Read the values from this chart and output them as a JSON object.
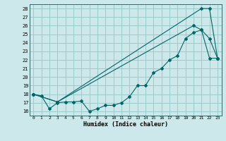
{
  "xlabel": "Humidex (Indice chaleur)",
  "bg_color": "#cce8ea",
  "grid_color": "#99cccc",
  "line_color": "#006666",
  "xlim": [
    -0.5,
    23.5
  ],
  "ylim": [
    15.5,
    28.5
  ],
  "xticks": [
    0,
    1,
    2,
    3,
    4,
    5,
    6,
    7,
    8,
    9,
    10,
    11,
    12,
    13,
    14,
    15,
    16,
    17,
    18,
    19,
    20,
    21,
    22,
    23
  ],
  "yticks": [
    16,
    17,
    18,
    19,
    20,
    21,
    22,
    23,
    24,
    25,
    26,
    27,
    28
  ],
  "line1_x": [
    0,
    1,
    2,
    3,
    4,
    5,
    6,
    7,
    8,
    9,
    10,
    11,
    12,
    13,
    14,
    15,
    16,
    17,
    18,
    19,
    20,
    21,
    22,
    23
  ],
  "line1_y": [
    18,
    17.8,
    16.3,
    17.0,
    17.1,
    17.1,
    17.2,
    16.0,
    16.3,
    16.7,
    16.7,
    17.0,
    17.7,
    19.0,
    19.0,
    20.5,
    21.0,
    22.0,
    22.5,
    24.5,
    25.2,
    25.5,
    22.2,
    22.2
  ],
  "line2_x": [
    0,
    3,
    21,
    22,
    23
  ],
  "line2_y": [
    18,
    17.1,
    28.0,
    28.0,
    22.2
  ],
  "line3_x": [
    0,
    3,
    20,
    21,
    22,
    23
  ],
  "line3_y": [
    18,
    17.1,
    26.0,
    25.5,
    24.5,
    22.2
  ]
}
